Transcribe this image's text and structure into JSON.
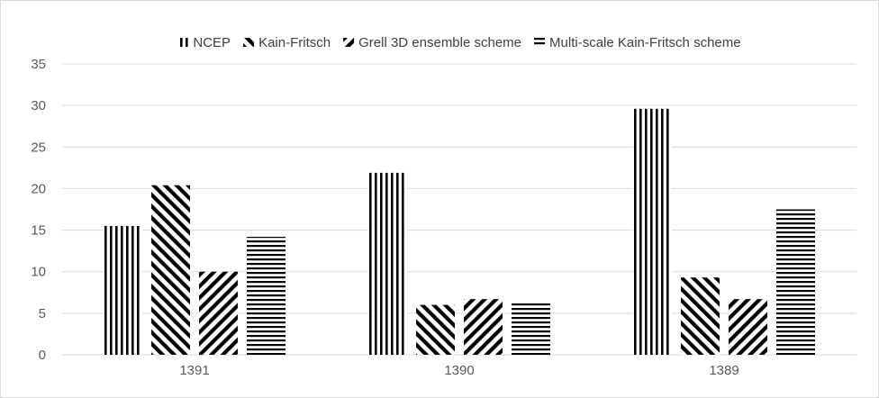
{
  "chart_data": {
    "type": "bar",
    "title": "",
    "xlabel": "",
    "ylabel": "",
    "categories": [
      "1391",
      "1390",
      "1389"
    ],
    "series": [
      {
        "name": "NCEP",
        "values": [
          15.5,
          21.9,
          29.6
        ],
        "pattern": "vertical"
      },
      {
        "name": "Kain-Fritsch",
        "values": [
          20.4,
          6.0,
          9.3
        ],
        "pattern": "diag-down"
      },
      {
        "name": "Grell 3D ensemble scheme",
        "values": [
          10.0,
          6.7,
          6.7
        ],
        "pattern": "diag-up"
      },
      {
        "name": "Multi-scale Kain-Fritsch scheme",
        "values": [
          14.2,
          6.3,
          17.5
        ],
        "pattern": "horizontal"
      }
    ],
    "ylim": [
      0,
      35
    ],
    "yticks": [
      "0",
      "5",
      "10",
      "15",
      "20",
      "25",
      "30",
      "35"
    ],
    "grid": true,
    "legend_position": "top",
    "colors": {
      "pattern": "#000000",
      "grid": "#d9d9d9",
      "text": "#595959"
    }
  }
}
